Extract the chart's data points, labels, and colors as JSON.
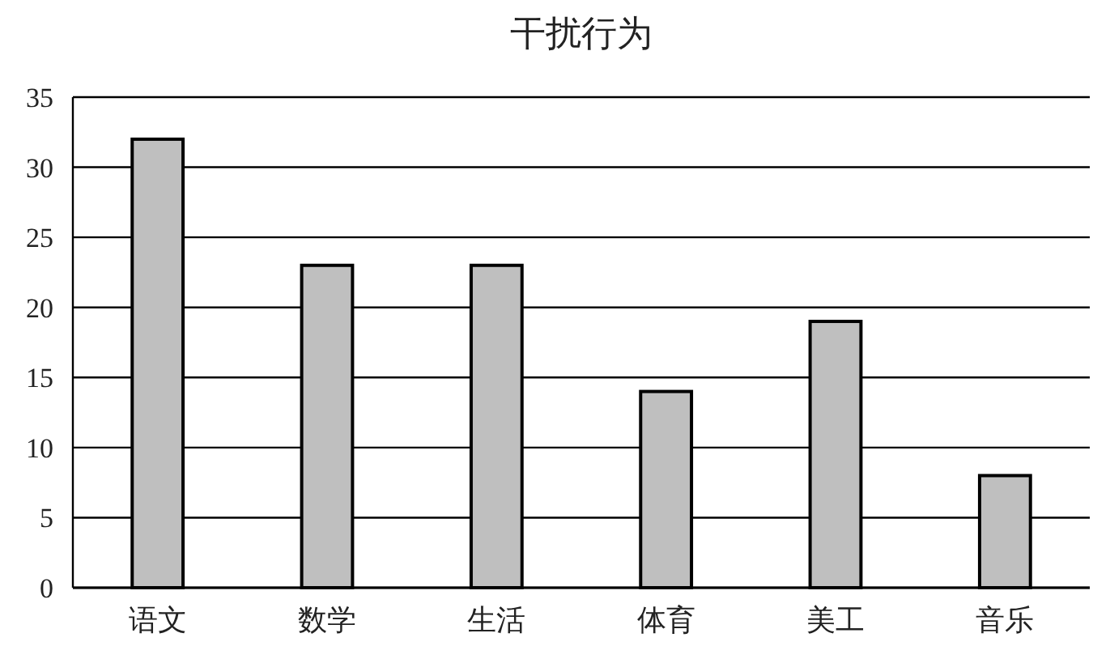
{
  "chart_data": {
    "type": "bar",
    "title": "干扰行为",
    "categories": [
      "语文",
      "数学",
      "生活",
      "体育",
      "美工",
      "音乐"
    ],
    "values": [
      32,
      23,
      23,
      14,
      19,
      8
    ],
    "color": "#bfbfbf",
    "ylim": [
      0,
      35
    ],
    "yticks": [
      0,
      5,
      10,
      15,
      20,
      25,
      30,
      35
    ],
    "grid": "y"
  }
}
